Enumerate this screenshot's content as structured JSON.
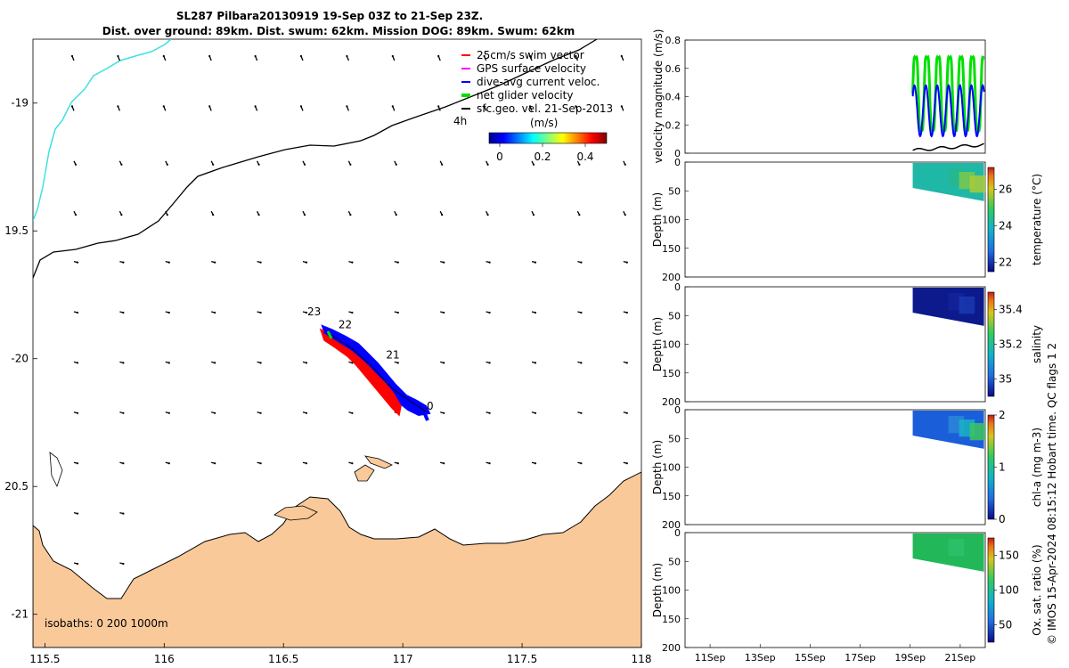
{
  "title": {
    "line1": "SL287 Pilbara20130919 19-Sep 03Z to 21-Sep 23Z.",
    "line2": "Dist. over ground: 89km. Dist. swum: 62km. Mission DOG: 89km. Swum: 62km"
  },
  "map": {
    "lon_ticks": [
      "115.5",
      "116",
      "116.5",
      "117",
      "117.5",
      "118"
    ],
    "lat_ticks": [
      "-19",
      "19.5",
      "-20",
      "20.5",
      "-21"
    ],
    "xlim": [
      115.45,
      118.0
    ],
    "ylim": [
      -21.13,
      -18.75
    ],
    "legend": [
      {
        "label": "25cm/s swim vector",
        "color": "#ff0000"
      },
      {
        "label": "GPS surface velocity",
        "color": "#ff00ff"
      },
      {
        "label": "dive-avg current veloc.",
        "color": "#0000ff"
      },
      {
        "label": "net glider velocity",
        "color": "#00e000"
      },
      {
        "label": "sfc.geo. vel. 21-Sep-2013",
        "color": "#000000"
      }
    ],
    "time_note": "4h",
    "colorbar_unit": "(m/s)",
    "colorbar_ticks": [
      "0",
      "0.2",
      "0.4"
    ],
    "colorbar_range": [
      -0.05,
      0.5
    ],
    "track_labels": [
      {
        "text": "23",
        "lon": 116.6,
        "lat": -19.83
      },
      {
        "text": "22",
        "lon": 116.73,
        "lat": -19.88
      },
      {
        "text": "21",
        "lon": 116.93,
        "lat": -20.0
      },
      {
        "text": "0",
        "lon": 117.1,
        "lat": -20.2
      }
    ],
    "isobaths_label": "isobaths: 0   200  1000m",
    "land_color": "#f9c99a",
    "coast_color": "#40e0e0"
  },
  "panels": {
    "x_ticks": [
      "11Sep",
      "13Sep",
      "15Sep",
      "17Sep",
      "19Sep",
      "21Sep"
    ],
    "xlim_days": [
      10.0,
      22.0
    ],
    "velocity": {
      "ylabel": "velocity magnitude (m/s)",
      "y_ticks": [
        "0",
        "0.2",
        "0.4",
        "0.6",
        "0.8"
      ],
      "ylim": [
        0,
        0.8
      ]
    },
    "depth_ticks": [
      "0",
      "50",
      "100",
      "150",
      "200"
    ],
    "depth_label": "Depth (m)",
    "temperature": {
      "cbar_label": "temperature (°C)",
      "cbar_ticks": [
        "22",
        "24",
        "26"
      ],
      "cbar_range": [
        21.5,
        27.2
      ]
    },
    "salinity": {
      "cbar_label": "salinity",
      "cbar_ticks": [
        "35",
        "35.2",
        "35.4"
      ],
      "cbar_range": [
        34.9,
        35.5
      ]
    },
    "chla": {
      "cbar_label": "chl-a (mg m-3)",
      "cbar_ticks": [
        "0",
        "1",
        "2"
      ],
      "cbar_range": [
        0,
        2
      ]
    },
    "oxygen": {
      "cbar_label": "Ox. sat. ratio (%)",
      "cbar_ticks": [
        "50",
        "100",
        "150"
      ],
      "cbar_range": [
        25,
        175
      ]
    }
  },
  "credit": "© IMOS 15-Apr-2024 08:15:12 Hobart time. QC flags 1  2"
}
